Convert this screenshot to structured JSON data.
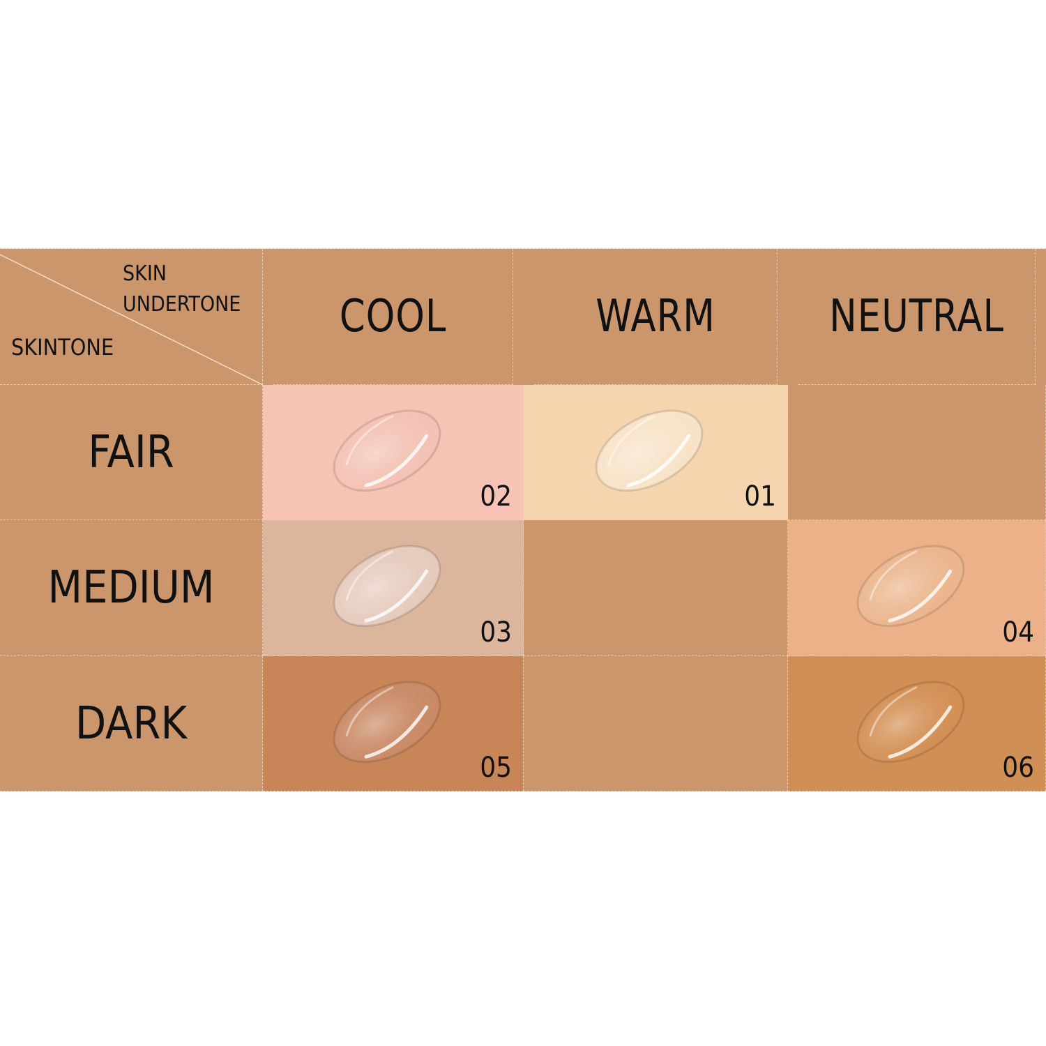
{
  "corner": {
    "column_axis": "SKIN UNDERTONE",
    "column_axis_line1": "SKIN",
    "column_axis_line2": "UNDERTONE",
    "row_axis": "SKINTONE"
  },
  "columns": [
    "COOL",
    "WARM",
    "NEUTRAL"
  ],
  "rows": [
    "FAIR",
    "MEDIUM",
    "DARK"
  ],
  "background_color": "#CB966B",
  "cells": [
    [
      {
        "shade": "02",
        "color": "#F6C3B5",
        "swatch": "#F3C2B4"
      },
      {
        "shade": "01",
        "color": "#F5D5AE",
        "swatch": "#F7E3C8"
      },
      null
    ],
    [
      {
        "shade": "03",
        "color": "#DBB59C",
        "swatch": "#E6CBBD"
      },
      null,
      {
        "shade": "04",
        "color": "#ECB189",
        "swatch": "#EBB68E"
      }
    ],
    [
      {
        "shade": "05",
        "color": "#C88558",
        "swatch": "#C98A66"
      },
      null,
      {
        "shade": "06",
        "color": "#D08F55",
        "swatch": "#D39055"
      }
    ]
  ]
}
